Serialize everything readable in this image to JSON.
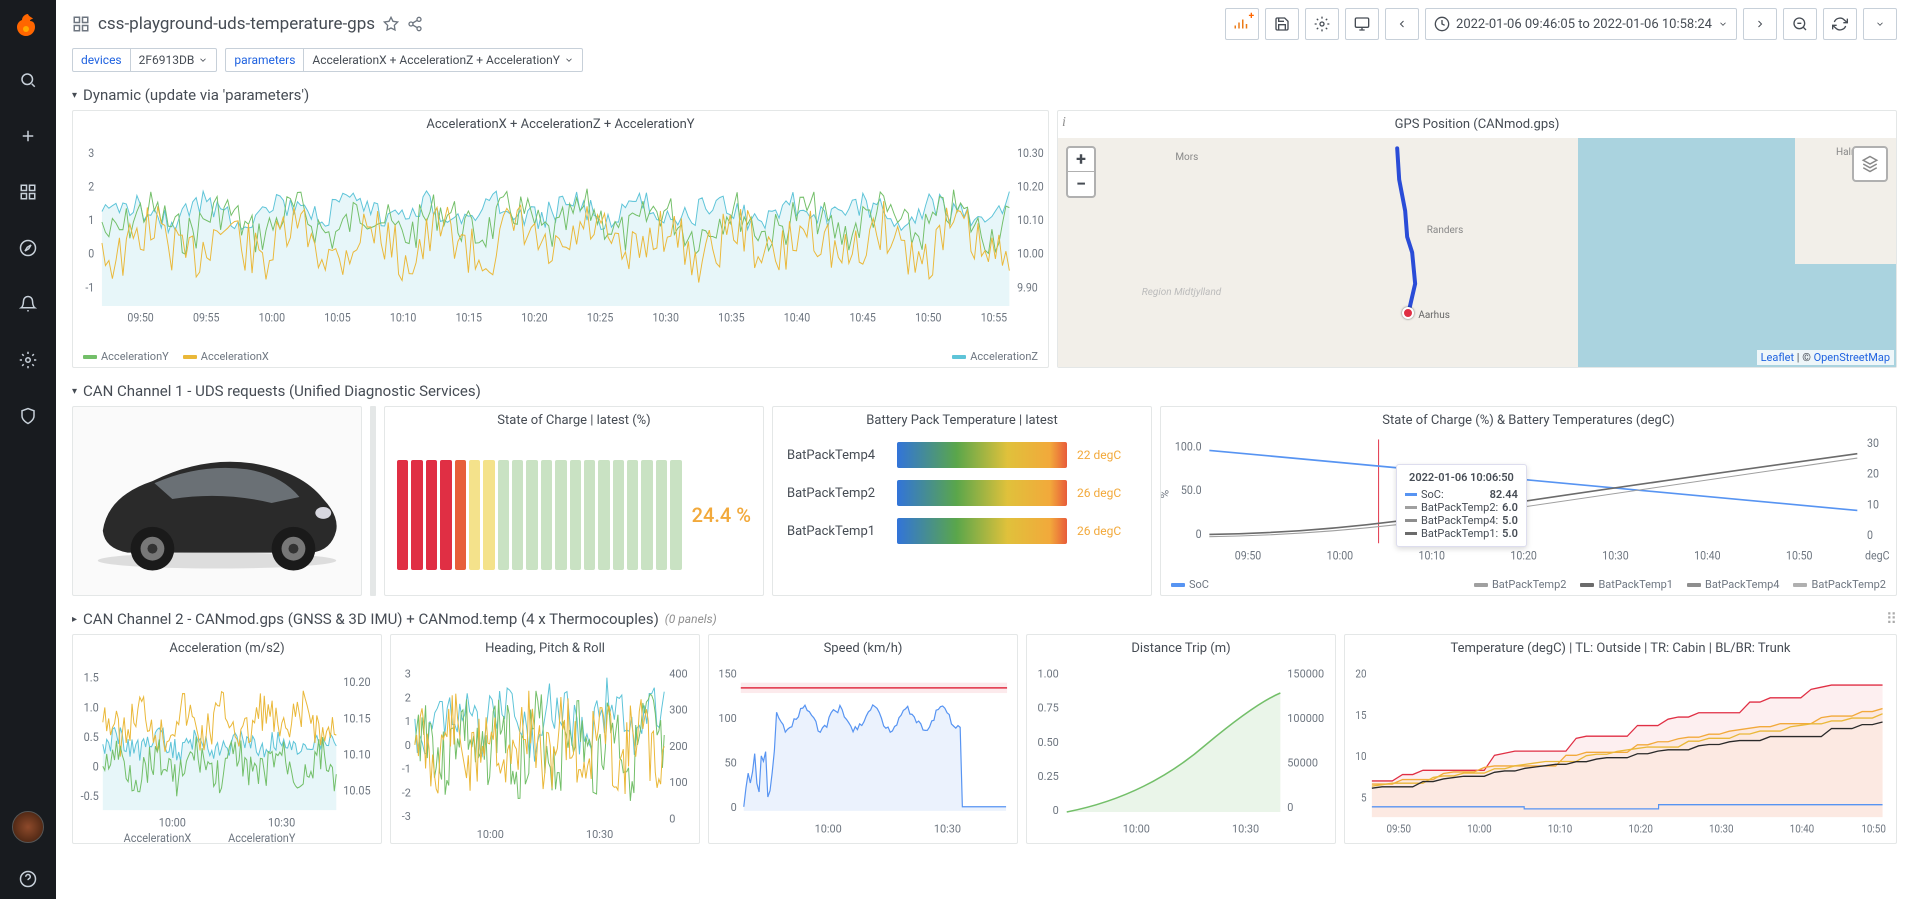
{
  "dashboard": {
    "title": "css-playground-uds-temperature-gps",
    "time_range": "2022-01-06 09:46:05 to 2022-01-06 10:58:24"
  },
  "variables": {
    "devices_label": "devices",
    "devices_value": "2F6913DB",
    "parameters_label": "parameters",
    "parameters_value": "AccelerationX + AccelerationZ + AccelerationY"
  },
  "sections": {
    "dynamic": "Dynamic (update via 'parameters')",
    "can1": "CAN Channel 1 - UDS requests (Unified Diagnostic Services)",
    "can2": "CAN Channel 2 - CANmod.gps (GNSS & 3D IMU) + CANmod.temp (4 x Thermocouples)",
    "can2_hint": "(0 panels)"
  },
  "accel_panel": {
    "title": "AccelerationX + AccelerationZ + AccelerationY",
    "y_left": {
      "min": -1,
      "max": 3,
      "ticks": [
        -1,
        0,
        1,
        2,
        3
      ]
    },
    "y_right": {
      "min": 9.9,
      "max": 10.3,
      "ticks": [
        "10.30",
        "10.20",
        "10.10",
        "10.00",
        "9.90"
      ]
    },
    "x_ticks": [
      "09:50",
      "09:55",
      "10:00",
      "10:05",
      "10:10",
      "10:15",
      "10:20",
      "10:25",
      "10:30",
      "10:35",
      "10:40",
      "10:45",
      "10:50",
      "10:55"
    ],
    "series": {
      "AccelerationY": {
        "color": "#73bf69"
      },
      "AccelerationX": {
        "color": "#eab839"
      },
      "AccelerationZ": {
        "color": "#5ec4d8"
      }
    }
  },
  "map_panel": {
    "title": "GPS Position (CANmod.gps)",
    "attrib_leaflet": "Leaflet",
    "attrib_sep": " | © ",
    "attrib_osm": "OpenStreetMap",
    "labels": {
      "mors": "Mors",
      "randers": "Randers",
      "aarhus": "Aarhus",
      "halmstad": "Halmstad",
      "region": "Region Midtjylland"
    }
  },
  "soc": {
    "title": "State of Charge | latest (%)",
    "value": "24.4 %",
    "bars": [
      {
        "c": "#e02f44"
      },
      {
        "c": "#e02f44"
      },
      {
        "c": "#e02f44"
      },
      {
        "c": "#e02f44"
      },
      {
        "c": "#e75f3a"
      },
      {
        "c": "#f4e28b"
      },
      {
        "c": "#f4e28b"
      },
      {
        "c": "#c9e2c3"
      },
      {
        "c": "#c9e2c3"
      },
      {
        "c": "#c9e2c3"
      },
      {
        "c": "#c9e2c3"
      },
      {
        "c": "#c9e2c3"
      },
      {
        "c": "#c9e2c3"
      },
      {
        "c": "#c9e2c3"
      },
      {
        "c": "#c9e2c3"
      },
      {
        "c": "#c9e2c3"
      },
      {
        "c": "#c9e2c3"
      },
      {
        "c": "#c9e2c3"
      },
      {
        "c": "#c9e2c3"
      },
      {
        "c": "#c9e2c3"
      }
    ]
  },
  "battemp": {
    "title": "Battery Pack Temperature | latest",
    "rows": [
      {
        "label": "BatPackTemp4",
        "value": "22 degC"
      },
      {
        "label": "BatPackTemp2",
        "value": "26 degC"
      },
      {
        "label": "BatPackTemp1",
        "value": "26 degC"
      }
    ]
  },
  "soc_temp_chart": {
    "title": "State of Charge (%) & Battery Temperatures (degC)",
    "y_left": {
      "ticks": [
        "100.0",
        "50.0",
        "0"
      ],
      "label": "%"
    },
    "y_right": {
      "ticks": [
        "30",
        "20",
        "10",
        "0",
        "degC"
      ]
    },
    "x_ticks": [
      "09:50",
      "10:00",
      "10:10",
      "10:20",
      "10:30",
      "10:40",
      "10:50"
    ],
    "legend": [
      {
        "name": "SoC",
        "color": "#5794f2"
      },
      {
        "name": "BatPackTemp2",
        "color": "#a0a0a0"
      },
      {
        "name": "BatPackTemp1",
        "color": "#6b6b6b"
      },
      {
        "name": "BatPackTemp4",
        "color": "#8e8e8e"
      },
      {
        "name": "BatPackTemp2",
        "color": "#b0b0b0"
      }
    ],
    "tooltip": {
      "time": "2022-01-06 10:06:50",
      "rows": [
        {
          "name": "SoC:",
          "val": "82.44",
          "color": "#5794f2"
        },
        {
          "name": "BatPackTemp2:",
          "val": "6.0",
          "color": "#a0a0a0"
        },
        {
          "name": "BatPackTemp4:",
          "val": "5.0",
          "color": "#8e8e8e"
        },
        {
          "name": "BatPackTemp1:",
          "val": "5.0",
          "color": "#6b6b6b"
        }
      ]
    }
  },
  "bottom": {
    "accel": {
      "title": "Acceleration (m/s2)",
      "yl": [
        "1.5",
        "1.0",
        "0.5",
        "0",
        "-0.5"
      ],
      "yr": [
        "10.20",
        "10.15",
        "10.10",
        "10.05"
      ],
      "x": [
        "10:00",
        "10:30"
      ],
      "legend": [
        "AccelerationX",
        "AccelerationY"
      ],
      "colors": {
        "x": "#eab839",
        "y": "#73bf69",
        "z": "#5ec4d8"
      }
    },
    "head": {
      "title": "Heading, Pitch & Roll",
      "yl": [
        "3",
        "2",
        "1",
        "0",
        "-1",
        "-2",
        "-3"
      ],
      "yr": [
        "400",
        "300",
        "200",
        "100",
        "0"
      ],
      "x": [
        "10:00",
        "10:30"
      ],
      "colors": {
        "a": "#73bf69",
        "b": "#eab839",
        "c": "#5ec4d8"
      }
    },
    "speed": {
      "title": "Speed (km/h)",
      "yl": [
        "150",
        "100",
        "50",
        "0"
      ],
      "x": [
        "10:00",
        "10:30"
      ],
      "color": "#5794f2",
      "thresh": "#e02f44"
    },
    "dist": {
      "title": "Distance Trip (m)",
      "yl": [
        "1.00",
        "0.75",
        "0.50",
        "0.25",
        "0"
      ],
      "yr": [
        "150000",
        "100000",
        "50000",
        "0"
      ],
      "x": [
        "10:00",
        "10:30"
      ],
      "color": "#73bf69"
    },
    "temp": {
      "title": "Temperature (degC) | TL: Outside | TR: Cabin | BL/BR: Trunk",
      "yl": [
        "20",
        "15",
        "10",
        "5"
      ],
      "x": [
        "09:50",
        "10:00",
        "10:10",
        "10:20",
        "10:30",
        "10:40",
        "10:50"
      ],
      "colors": [
        "#e02f44",
        "#f2a93b",
        "#eab839",
        "#2a2a2a",
        "#5794f2"
      ]
    }
  }
}
